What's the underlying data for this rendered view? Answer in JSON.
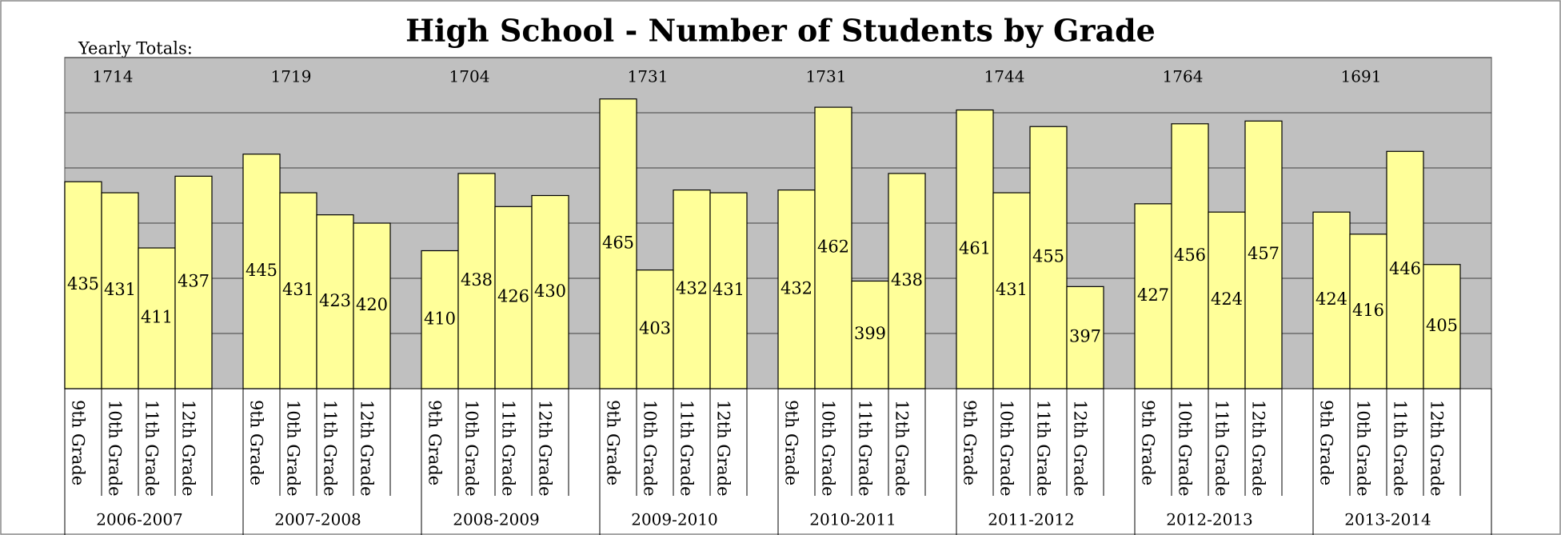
{
  "chart_data": {
    "type": "bar",
    "title": "High School - Number of Students by Grade",
    "totals_label": "Yearly Totals:",
    "categories": [
      "2006-2007",
      "2007-2008",
      "2008-2009",
      "2009-2010",
      "2010-2011",
      "2011-2012",
      "2012-2013",
      "2013-2014"
    ],
    "totals": [
      1714,
      1719,
      1704,
      1731,
      1731,
      1744,
      1764,
      1691
    ],
    "series": [
      {
        "name": "9th Grade",
        "values": [
          435,
          445,
          410,
          465,
          432,
          461,
          427,
          424
        ]
      },
      {
        "name": "10th Grade",
        "values": [
          431,
          431,
          438,
          403,
          462,
          431,
          456,
          416
        ]
      },
      {
        "name": "11th Grade",
        "values": [
          411,
          423,
          426,
          432,
          399,
          455,
          424,
          446
        ]
      },
      {
        "name": "12th Grade",
        "values": [
          437,
          420,
          430,
          431,
          438,
          397,
          457,
          405
        ]
      }
    ],
    "color": "#ffff99",
    "ylim": [
      360,
      480
    ],
    "yticks": [
      360,
      380,
      400,
      420,
      440,
      460,
      480
    ],
    "grid": true
  }
}
